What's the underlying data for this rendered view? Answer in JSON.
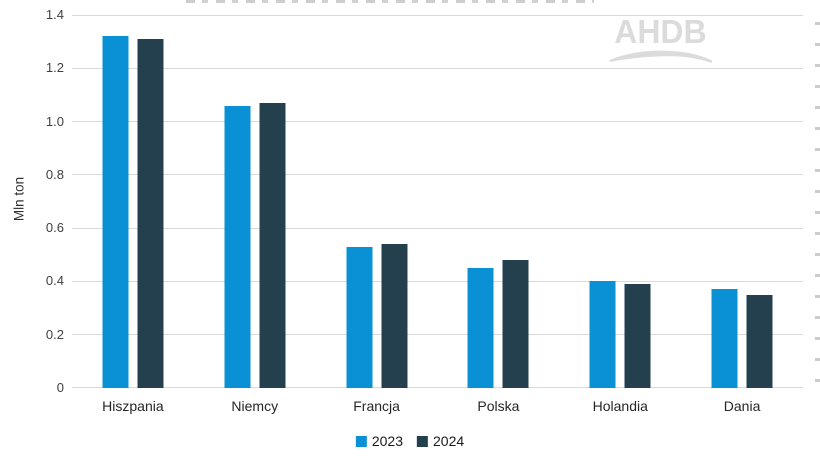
{
  "chart_data": {
    "type": "bar",
    "categories": [
      "Hiszpania",
      "Niemcy",
      "Francja",
      "Polska",
      "Holandia",
      "Dania"
    ],
    "series": [
      {
        "name": "2023",
        "color": "#0a90d5",
        "values": [
          1.32,
          1.06,
          0.53,
          0.45,
          0.4,
          0.37
        ]
      },
      {
        "name": "2024",
        "color": "#24404f",
        "values": [
          1.31,
          1.07,
          0.54,
          0.48,
          0.39,
          0.35
        ]
      }
    ],
    "title": "",
    "xlabel": "",
    "ylabel": "Mln ton",
    "ylim": [
      0,
      1.4
    ],
    "yticks": [
      "0",
      "0.2",
      "0.4",
      "0.6",
      "0.8",
      "1.0",
      "1.2",
      "1.4"
    ],
    "grid": true,
    "gridline_color": "#d9d9d9",
    "legend_position": "bottom"
  },
  "watermark": {
    "text": "AHDB",
    "color": "#dbdbdb"
  },
  "colors": {
    "background": "#ffffff",
    "tick_text": "#404040",
    "category_text": "#262626",
    "legend_text": "#1a1a1a"
  }
}
